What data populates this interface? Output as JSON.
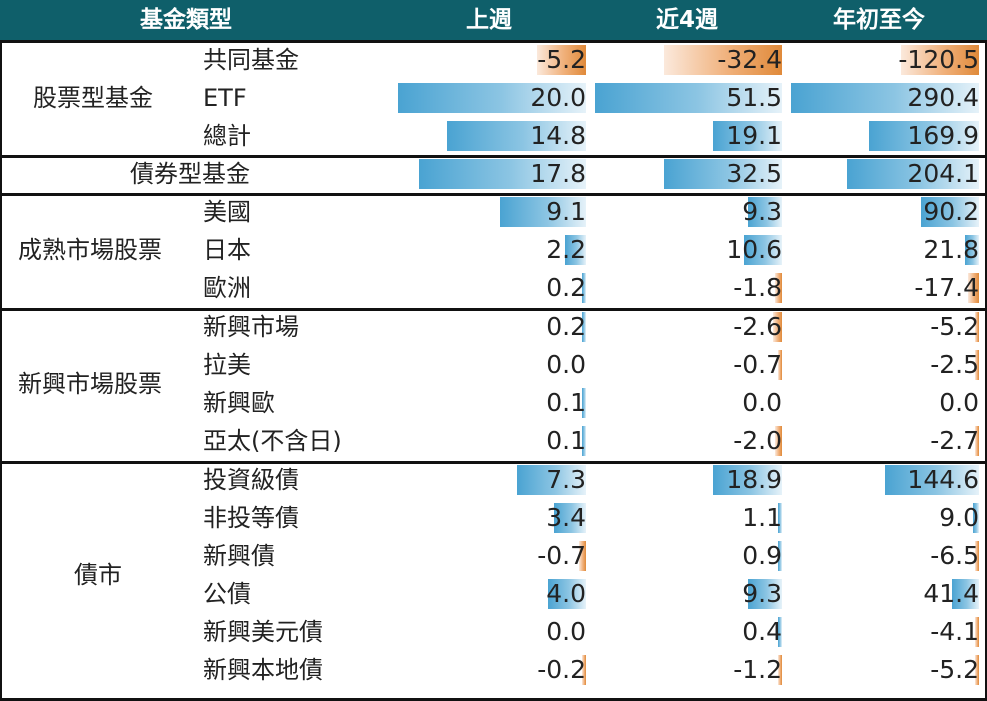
{
  "header": {
    "category": "基金類型",
    "columns": [
      "上週",
      "近4週",
      "年初至今"
    ]
  },
  "groups": [
    {
      "label": "股票型基金",
      "rows": [
        {
          "name": "共同基金",
          "values": [
            -5.2,
            -32.4,
            -120.5
          ]
        },
        {
          "name": "ETF",
          "values": [
            20.0,
            51.5,
            290.4
          ]
        },
        {
          "name": "總計",
          "values": [
            14.8,
            19.1,
            169.9
          ]
        }
      ]
    },
    {
      "label": "債券型基金",
      "rows": [
        {
          "name": "",
          "values": [
            17.8,
            32.5,
            204.1
          ]
        }
      ]
    },
    {
      "label": "成熟市場股票",
      "rows": [
        {
          "name": "美國",
          "values": [
            9.1,
            9.3,
            90.2
          ]
        },
        {
          "name": "日本",
          "values": [
            2.2,
            10.6,
            21.8
          ]
        },
        {
          "name": "歐洲",
          "values": [
            0.2,
            -1.8,
            -17.4
          ]
        }
      ]
    },
    {
      "label": "新興市場股票",
      "rows": [
        {
          "name": "新興市場",
          "values": [
            0.2,
            -2.6,
            -5.2
          ]
        },
        {
          "name": "拉美",
          "values": [
            0.0,
            -0.7,
            -2.5
          ]
        },
        {
          "name": "新興歐",
          "values": [
            0.1,
            0.0,
            0.0
          ]
        },
        {
          "name": "亞太(不含日)",
          "values": [
            0.1,
            -2.0,
            -2.7
          ]
        }
      ]
    },
    {
      "label": "債市",
      "rows": [
        {
          "name": "投資級債",
          "values": [
            7.3,
            18.9,
            144.6
          ]
        },
        {
          "name": "非投等債",
          "values": [
            3.4,
            1.1,
            9.0
          ]
        },
        {
          "name": "新興債",
          "values": [
            -0.7,
            0.9,
            -6.5
          ]
        },
        {
          "name": "公債",
          "values": [
            4.0,
            9.3,
            41.4
          ]
        },
        {
          "name": "新興美元債",
          "values": [
            0.0,
            0.4,
            -4.1
          ]
        },
        {
          "name": "新興本地債",
          "values": [
            -0.2,
            -1.2,
            -5.2
          ]
        }
      ]
    }
  ],
  "colors": {
    "header_bg": "#0f5f6a",
    "positive_bar": "#4aa3d2",
    "negative_bar": "#e08a3a"
  },
  "chart_data": {
    "type": "table",
    "columns": [
      "上週",
      "近4週",
      "年初至今"
    ],
    "rows": [
      {
        "group": "股票型基金",
        "name": "共同基金",
        "values": [
          -5.2,
          -32.4,
          -120.5
        ]
      },
      {
        "group": "股票型基金",
        "name": "ETF",
        "values": [
          20.0,
          51.5,
          290.4
        ]
      },
      {
        "group": "股票型基金",
        "name": "總計",
        "values": [
          14.8,
          19.1,
          169.9
        ]
      },
      {
        "group": "債券型基金",
        "name": "",
        "values": [
          17.8,
          32.5,
          204.1
        ]
      },
      {
        "group": "成熟市場股票",
        "name": "美國",
        "values": [
          9.1,
          9.3,
          90.2
        ]
      },
      {
        "group": "成熟市場股票",
        "name": "日本",
        "values": [
          2.2,
          10.6,
          21.8
        ]
      },
      {
        "group": "成熟市場股票",
        "name": "歐洲",
        "values": [
          0.2,
          -1.8,
          -17.4
        ]
      },
      {
        "group": "新興市場股票",
        "name": "新興市場",
        "values": [
          0.2,
          -2.6,
          -5.2
        ]
      },
      {
        "group": "新興市場股票",
        "name": "拉美",
        "values": [
          0.0,
          -0.7,
          -2.5
        ]
      },
      {
        "group": "新興市場股票",
        "name": "新興歐",
        "values": [
          0.1,
          0.0,
          0.0
        ]
      },
      {
        "group": "新興市場股票",
        "name": "亞太(不含日)",
        "values": [
          0.1,
          -2.0,
          -2.7
        ]
      },
      {
        "group": "債市",
        "name": "投資級債",
        "values": [
          7.3,
          18.9,
          144.6
        ]
      },
      {
        "group": "債市",
        "name": "非投等債",
        "values": [
          3.4,
          1.1,
          9.0
        ]
      },
      {
        "group": "債市",
        "name": "新興債",
        "values": [
          -0.7,
          0.9,
          -6.5
        ]
      },
      {
        "group": "債市",
        "name": "公債",
        "values": [
          4.0,
          9.3,
          41.4
        ]
      },
      {
        "group": "債市",
        "name": "新興美元債",
        "values": [
          0.0,
          0.4,
          -4.1
        ]
      },
      {
        "group": "債市",
        "name": "新興本地債",
        "values": [
          -0.2,
          -1.2,
          -5.2
        ]
      }
    ]
  }
}
